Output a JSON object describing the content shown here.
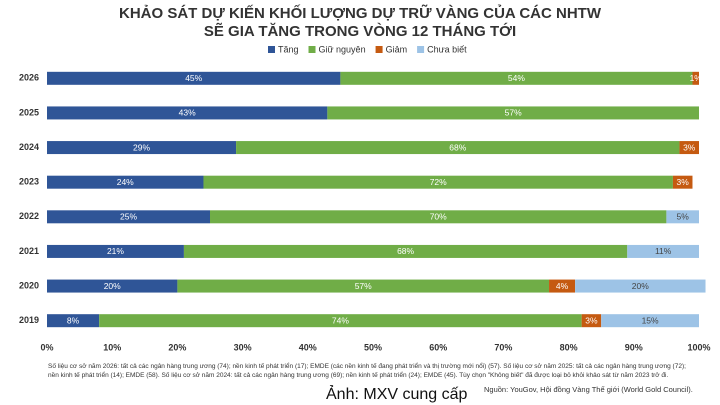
{
  "chart_data": {
    "type": "stacked-barh",
    "title": "KHẢO SÁT DỰ KIẾN KHỐI LƯỢNG DỰ TRỮ VÀNG CỦA CÁC NHTW",
    "subtitle": "SẼ GIA TĂNG TRONG VÒNG 12 THÁNG TỚI",
    "categories": [
      "2026",
      "2025",
      "2024",
      "2023",
      "2022",
      "2021",
      "2020",
      "2019"
    ],
    "series": [
      {
        "name": "Tăng",
        "color": "#2f5597",
        "values": [
          45,
          43,
          29,
          24,
          25,
          21,
          20,
          8
        ],
        "value_labels": [
          "45%",
          "43%",
          "29%",
          "24%",
          "25%",
          "21%",
          "20%",
          "8%"
        ]
      },
      {
        "name": "Giữ nguyên",
        "color": "#70ad47",
        "values": [
          54,
          57,
          68,
          72,
          70,
          68,
          57,
          74
        ],
        "value_labels": [
          "54%",
          "57%",
          "68%",
          "72%",
          "70%",
          "68%",
          "57%",
          "74%"
        ]
      },
      {
        "name": "Giảm",
        "color": "#c55a11",
        "values": [
          1,
          null,
          3,
          3,
          null,
          null,
          4,
          3
        ],
        "value_labels": [
          "1%",
          null,
          "3%",
          "3%",
          null,
          null,
          "4%",
          "3%"
        ]
      },
      {
        "name": "Chưa biết",
        "color": "#9dc3e6",
        "values": [
          null,
          null,
          null,
          null,
          5,
          11,
          20,
          15
        ],
        "value_labels": [
          null,
          null,
          null,
          null,
          "5%",
          "11%",
          "20%",
          "15%"
        ]
      }
    ],
    "xlim": [
      0,
      100
    ],
    "xticks": [
      {
        "value": 0,
        "label": "0%"
      },
      {
        "value": 10,
        "label": "10%"
      },
      {
        "value": 20,
        "label": "20%"
      },
      {
        "value": 30,
        "label": "30%"
      },
      {
        "value": 40,
        "label": "40%"
      },
      {
        "value": 50,
        "label": "50%"
      },
      {
        "value": 60,
        "label": "60%"
      },
      {
        "value": 70,
        "label": "70%"
      },
      {
        "value": 80,
        "label": "80%"
      },
      {
        "value": 90,
        "label": "90%"
      },
      {
        "value": 100,
        "label": "100%"
      }
    ],
    "grid": false,
    "legend": "top",
    "footnote": "Số liệu cơ sở năm 2026: tất cả các ngân hàng trung ương (74); nền kinh tế phát triển (17); EMDE (các nền kinh tế đang phát triển và thị trường mới nổi) (57). Số liệu cơ sở năm 2025: tất cả các ngân hàng trung ương (72); nền kinh tế phát triển (14); EMDE (58). Số liệu cơ sở năm 2024: tất cả các ngân hàng trung ương (69); nền kinh tế phát triển (24); EMDE (45). Tùy chọn \"Không biết\" đã được loại bỏ khỏi khảo sát từ năm 2023 trở đi.",
    "source": "Nguồn: YouGov, Hội đồng Vàng Thế giới (World Gold Council).",
    "caption": "Ảnh: MXV cung cấp"
  }
}
